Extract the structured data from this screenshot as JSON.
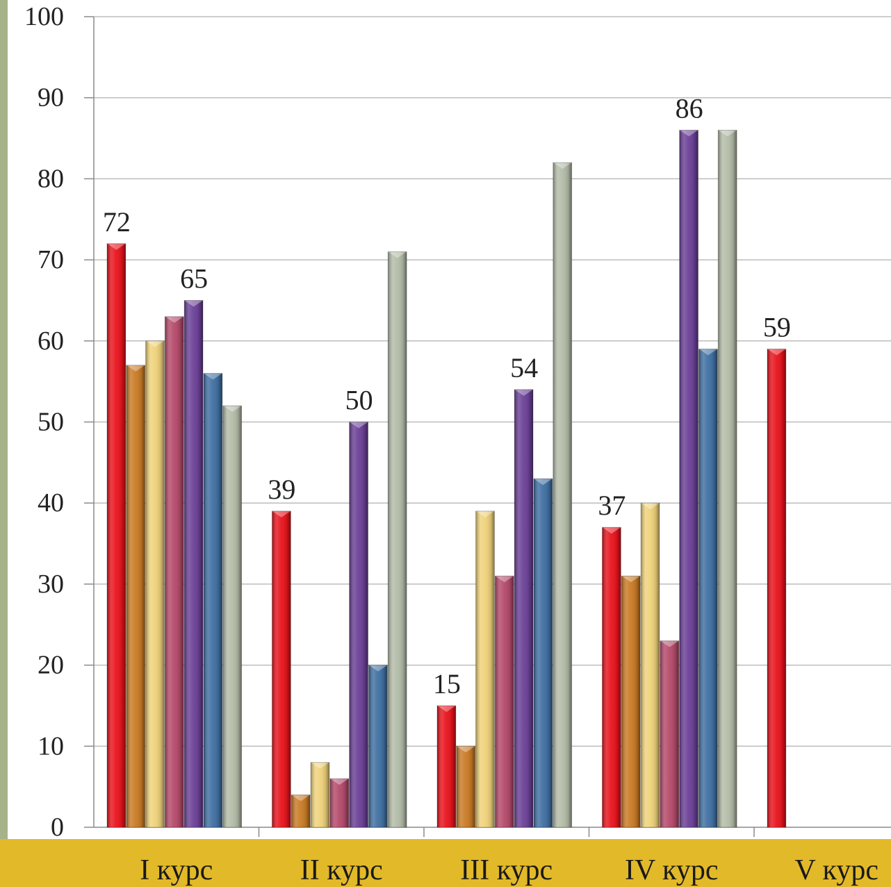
{
  "chart_data": {
    "type": "bar",
    "categories": [
      "I курс",
      "II курс",
      "III курс",
      "IV курс",
      "V курс"
    ],
    "ylim": [
      0,
      100
    ],
    "yticks": [
      0,
      10,
      20,
      30,
      40,
      50,
      60,
      70,
      80,
      90,
      100
    ],
    "grid": true,
    "legend": "none",
    "series": [
      {
        "color": "#e8121b",
        "values": [
          72,
          39,
          15,
          37,
          59
        ]
      },
      {
        "color": "#c97a24",
        "values": [
          57,
          4,
          10,
          31,
          null
        ]
      },
      {
        "color": "#efd27a",
        "values": [
          60,
          8,
          39,
          40,
          null
        ]
      },
      {
        "color": "#b4496a",
        "values": [
          63,
          6,
          31,
          23,
          null
        ]
      },
      {
        "color": "#6a3f96",
        "values": [
          65,
          50,
          54,
          86,
          null
        ]
      },
      {
        "color": "#3f6fa2",
        "values": [
          56,
          20,
          43,
          59,
          null
        ]
      },
      {
        "color": "#b3bca8",
        "values": [
          52,
          71,
          82,
          86,
          null
        ]
      }
    ],
    "data_labels": [
      {
        "category": 0,
        "series": 0,
        "text": "72"
      },
      {
        "category": 0,
        "series": 4,
        "text": "65"
      },
      {
        "category": 1,
        "series": 0,
        "text": "39"
      },
      {
        "category": 1,
        "series": 4,
        "text": "50"
      },
      {
        "category": 2,
        "series": 0,
        "text": "15"
      },
      {
        "category": 2,
        "series": 4,
        "text": "54"
      },
      {
        "category": 3,
        "series": 0,
        "text": "37"
      },
      {
        "category": 3,
        "series": 4,
        "text": "86"
      },
      {
        "category": 4,
        "series": 0,
        "text": "59"
      }
    ]
  }
}
